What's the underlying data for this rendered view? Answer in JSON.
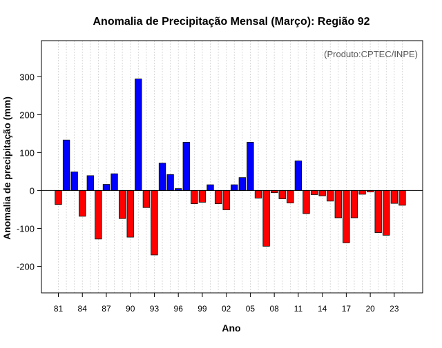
{
  "chart_data": {
    "type": "bar",
    "title": "Anomalia de Precipitação Mensal (Março): Região 92",
    "annotation": "(Produto:CPTEC/INPE)",
    "xlabel": "Ano",
    "ylabel": "Anomalia de precipitação (mm)",
    "ylim": [
      -270,
      395
    ],
    "y_ticks": [
      -200,
      -100,
      0,
      100,
      200,
      300
    ],
    "x_tick_labels": [
      "81",
      "84",
      "87",
      "90",
      "93",
      "96",
      "99",
      "02",
      "05",
      "08",
      "11",
      "14",
      "17",
      "20",
      "23"
    ],
    "categories": [
      "1981",
      "1982",
      "1983",
      "1984",
      "1985",
      "1986",
      "1987",
      "1988",
      "1989",
      "1990",
      "1991",
      "1992",
      "1993",
      "1994",
      "1995",
      "1996",
      "1997",
      "1998",
      "1999",
      "2000",
      "2001",
      "2002",
      "2003",
      "2004",
      "2005",
      "2006",
      "2007",
      "2008",
      "2009",
      "2010",
      "2011",
      "2012",
      "2013",
      "2014",
      "2015",
      "2016",
      "2017",
      "2018",
      "2019",
      "2020",
      "2021",
      "2022",
      "2023",
      "2024"
    ],
    "values": [
      -37,
      133,
      49,
      -68,
      39,
      -128,
      16,
      44,
      -74,
      -123,
      294,
      -45,
      -170,
      72,
      42,
      5,
      127,
      -35,
      -31,
      15,
      -35,
      -51,
      15,
      34,
      127,
      -20,
      -147,
      -6,
      -22,
      -33,
      78,
      -61,
      -11,
      -14,
      -28,
      -72,
      -138,
      -72,
      -10,
      -4,
      -111,
      -118,
      -34,
      -39
    ],
    "positive_color": "#0000ff",
    "negative_color": "#ff0000",
    "grid": true
  }
}
